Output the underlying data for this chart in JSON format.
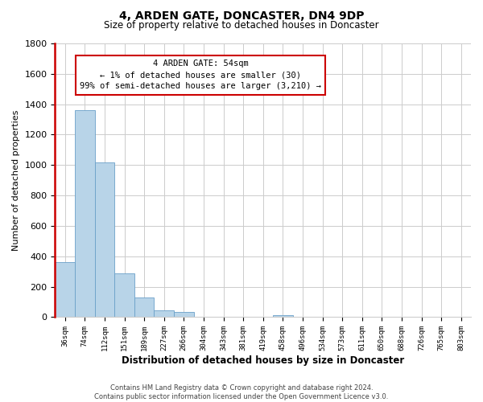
{
  "title": "4, ARDEN GATE, DONCASTER, DN4 9DP",
  "subtitle": "Size of property relative to detached houses in Doncaster",
  "xlabel": "Distribution of detached houses by size in Doncaster",
  "ylabel": "Number of detached properties",
  "categories": [
    "36sqm",
    "74sqm",
    "112sqm",
    "151sqm",
    "189sqm",
    "227sqm",
    "266sqm",
    "304sqm",
    "343sqm",
    "381sqm",
    "419sqm",
    "458sqm",
    "496sqm",
    "534sqm",
    "573sqm",
    "611sqm",
    "650sqm",
    "688sqm",
    "726sqm",
    "765sqm",
    "803sqm"
  ],
  "values": [
    360,
    1360,
    1020,
    290,
    130,
    45,
    35,
    0,
    0,
    0,
    0,
    15,
    0,
    0,
    0,
    0,
    0,
    0,
    0,
    0,
    0
  ],
  "bar_color": "#b8d4e8",
  "bar_edge_color": "#6aa0c8",
  "ylim": [
    0,
    1800
  ],
  "yticks": [
    0,
    200,
    400,
    600,
    800,
    1000,
    1200,
    1400,
    1600,
    1800
  ],
  "annotation_lines": [
    "4 ARDEN GATE: 54sqm",
    "← 1% of detached houses are smaller (30)",
    "99% of semi-detached houses are larger (3,210) →"
  ],
  "vline_color": "#cc0000",
  "footer_line1": "Contains HM Land Registry data © Crown copyright and database right 2024.",
  "footer_line2": "Contains public sector information licensed under the Open Government Licence v3.0.",
  "bg_color": "#ffffff",
  "grid_color": "#cccccc"
}
